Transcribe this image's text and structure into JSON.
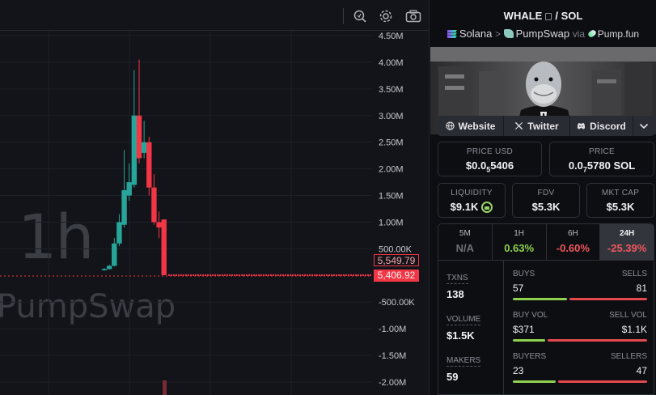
{
  "chart": {
    "interval_watermark": "1h",
    "dex_watermark": "PumpSwap",
    "y_axis_labels": [
      {
        "label": "4.50M",
        "value": 4500000
      },
      {
        "label": "4.00M",
        "value": 4000000
      },
      {
        "label": "3.50M",
        "value": 3500000
      },
      {
        "label": "3.00M",
        "value": 3000000
      },
      {
        "label": "2.50M",
        "value": 2500000
      },
      {
        "label": "2.00M",
        "value": 2000000
      },
      {
        "label": "1.50M",
        "value": 1500000
      },
      {
        "label": "1.00M",
        "value": 1000000
      },
      {
        "label": "500.00K",
        "value": 500000
      },
      {
        "label": "-500.00K",
        "value": -500000
      },
      {
        "label": "-1.00M",
        "value": -1000000
      },
      {
        "label": "-1.50M",
        "value": -1500000
      },
      {
        "label": "-2.00M",
        "value": -2000000
      }
    ],
    "last_open_label": "5,549.79",
    "last_close_label": "5,406.92",
    "candles": [
      {
        "o": 100000,
        "c": 120000,
        "h": 140000,
        "l": 90000
      },
      {
        "o": 120000,
        "c": 180000,
        "h": 200000,
        "l": 110000
      },
      {
        "o": 180000,
        "c": 600000,
        "h": 700000,
        "l": 170000
      },
      {
        "o": 600000,
        "c": 1000000,
        "h": 1150000,
        "l": 550000
      },
      {
        "o": 950000,
        "c": 1600000,
        "h": 2350000,
        "l": 900000
      },
      {
        "o": 1500000,
        "c": 1750000,
        "h": 2100000,
        "l": 1400000
      },
      {
        "o": 1700000,
        "c": 3000000,
        "h": 3850000,
        "l": 1650000
      },
      {
        "o": 3000000,
        "c": 2200000,
        "h": 4050000,
        "l": 2100000
      },
      {
        "o": 2300000,
        "c": 2500000,
        "h": 2900000,
        "l": 2200000
      },
      {
        "o": 2500000,
        "c": 1650000,
        "h": 2600000,
        "l": 1500000
      },
      {
        "o": 1650000,
        "c": 1000000,
        "h": 1900000,
        "l": 950000
      },
      {
        "o": 1000000,
        "c": 900000,
        "h": 1200000,
        "l": 700000
      },
      {
        "o": 1050000,
        "c": 5400,
        "h": 1050000,
        "l": 5000
      }
    ],
    "flat_price": 5406.92,
    "ylim": [
      -2100000,
      4650000
    ]
  },
  "pair": {
    "base": "WHALE",
    "separator": "/",
    "quote": "SOL"
  },
  "breadcrumb": {
    "chain": "Solana",
    "sep": ">",
    "dex": "PumpSwap",
    "via": "via",
    "launchpad": "Pump.fun"
  },
  "links": {
    "website": "Website",
    "twitter": "Twitter",
    "discord": "Discord"
  },
  "stats": {
    "price_usd_label": "PRICE USD",
    "price_usd_pre": "$0.0",
    "price_usd_sub": "5",
    "price_usd_post": "5406",
    "price_label": "PRICE",
    "price_pre": "0.0",
    "price_sub": "7",
    "price_post": "5780 SOL",
    "liquidity_label": "LIQUIDITY",
    "liquidity_value": "$9.1K",
    "fdv_label": "FDV",
    "fdv_value": "$5.3K",
    "mcap_label": "MKT CAP",
    "mcap_value": "$5.3K"
  },
  "timeframes": [
    {
      "label": "5M",
      "value": "N/A",
      "color": "#6e7078"
    },
    {
      "label": "1H",
      "value": "0.63%",
      "color": "#8fd14f"
    },
    {
      "label": "6H",
      "value": "-0.60%",
      "color": "#f0575c"
    },
    {
      "label": "24H",
      "value": "-25.39%",
      "color": "#f0575c"
    }
  ],
  "txns": {
    "txns_label": "TXNS",
    "txns_value": "138",
    "volume_label": "VOLUME",
    "volume_value": "$1.5K",
    "makers_label": "MAKERS",
    "makers_value": "59",
    "buys_label": "BUYS",
    "sells_label": "SELLS",
    "buys_value": "57",
    "sells_value": "81",
    "buys_frac": 0.41,
    "buyvol_label": "BUY VOL",
    "sellvol_label": "SELL VOL",
    "buyvol_value": "$371",
    "sellvol_value": "$1.1K",
    "buyvol_frac": 0.25,
    "buyers_label": "BUYERS",
    "sellers_label": "SELLERS",
    "buyers_value": "23",
    "sellers_value": "47",
    "buyers_frac": 0.33
  },
  "colors": {
    "up": "#26a69a",
    "down": "#f23645",
    "buy": "#8fd14f",
    "sell": "#e5484d"
  }
}
